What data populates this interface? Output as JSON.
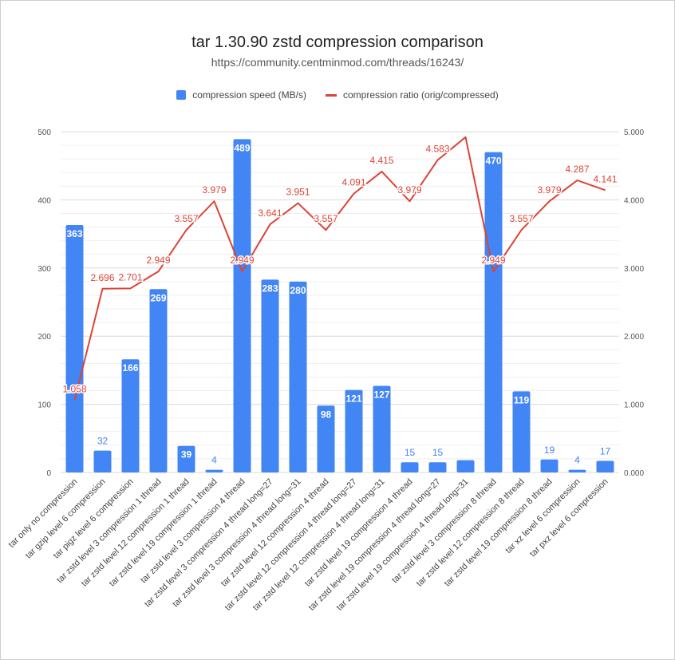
{
  "chart_data": {
    "type": "bar",
    "title": "tar 1.30.90 zstd compression comparison",
    "subtitle": "https://community.centminmod.com/threads/16243/",
    "legend_position": "top",
    "grid": true,
    "categories": [
      "tar only no compression",
      "tar gzip level 6 compression",
      "tar pigz level 6 compression",
      "tar zstd level 3 compression 1 thread",
      "tar zstd level 12 compression 1 thread",
      "tar zstd level 19 compression 1 thread",
      "tar zstd level 3 compression 4 thread",
      "tar zstd level 3 compression 4 thread long=27",
      "tar zstd level 3 compression 4 thread long=31",
      "tar zstd level 12 compression 4 thread",
      "tar zstd level 12 compression 4 thread long=27",
      "tar zstd level 12 compression 4 thread long=31",
      "tar zstd level 19 compression 4 thread",
      "tar zstd level 19 compression 4 thread long=27",
      "tar zstd level 19 compression 4 thread long=31",
      "tar zstd level 3 compression 8 thread",
      "tar zstd level 12 compression 8 thread",
      "tar zstd level 19 compression 8 thread",
      "tar xz level 6 compression",
      "tar pxz level 6 compression"
    ],
    "series": [
      {
        "name": "compression speed (MB/s)",
        "type": "bar",
        "axis": "left",
        "color": "#4285f4",
        "values": [
          363,
          32,
          166,
          269,
          39,
          4,
          489,
          283,
          280,
          98,
          121,
          127,
          15,
          15,
          18,
          470,
          119,
          19,
          4,
          17
        ],
        "labels": [
          "363",
          "32",
          "166",
          "269",
          "39",
          "4",
          "489",
          "283",
          "280",
          "98",
          "121",
          "127",
          "15",
          "15",
          "",
          "470",
          "119",
          "19",
          "4",
          "17"
        ]
      },
      {
        "name": "compression ratio (orig/compressed)",
        "type": "line",
        "axis": "right",
        "color": "#db4437",
        "values": [
          1.058,
          2.696,
          2.701,
          2.949,
          3.557,
          3.979,
          2.949,
          3.641,
          3.951,
          3.557,
          4.091,
          4.415,
          3.979,
          4.583,
          4.92,
          2.949,
          3.557,
          3.979,
          4.287,
          4.141
        ],
        "labels": [
          "1.058",
          "2.696",
          "2.701",
          "2.949",
          "3.557",
          "3.979",
          "2.949",
          "3.641",
          "3.951",
          "3.557",
          "4.091",
          "4.415",
          "3.979",
          "4.583",
          "",
          "2.949",
          "3.557",
          "3.979",
          "4.287",
          "4.141"
        ]
      }
    ],
    "y_left": {
      "min": 0,
      "max": 500,
      "ticks": [
        "0",
        "100",
        "200",
        "300",
        "400",
        "500"
      ]
    },
    "y_right": {
      "min": 0,
      "max": 5,
      "ticks": [
        "0.000",
        "1.000",
        "2.000",
        "3.000",
        "4.000",
        "5.000"
      ]
    }
  }
}
